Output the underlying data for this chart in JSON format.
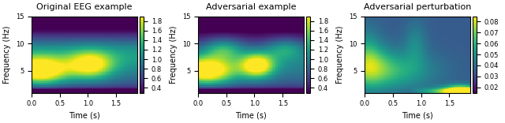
{
  "title1": "Original EEG example",
  "title2": "Adversarial example",
  "title3": "Adversarial perturbation",
  "xlabel": "Time (s)",
  "ylabel": "Frequency (Hz)",
  "cmap1": "viridis",
  "cmap2": "viridis",
  "cmap3": "viridis",
  "clim1": [
    0.3,
    1.9
  ],
  "clim2": [
    0.3,
    1.9
  ],
  "clim3": [
    0.015,
    0.085
  ],
  "cticks1": [
    0.4,
    0.6,
    0.8,
    1.0,
    1.2,
    1.4,
    1.6,
    1.8
  ],
  "cticks2": [
    0.4,
    0.6,
    0.8,
    1.0,
    1.2,
    1.4,
    1.6,
    1.8
  ],
  "cticks3": [
    0.02,
    0.03,
    0.04,
    0.05,
    0.06,
    0.07,
    0.08
  ],
  "xticks": [
    0.0,
    0.5,
    1.0,
    1.5
  ],
  "yticks": [
    5,
    10,
    15
  ],
  "title_fontsize": 8,
  "label_fontsize": 7,
  "tick_fontsize": 6
}
